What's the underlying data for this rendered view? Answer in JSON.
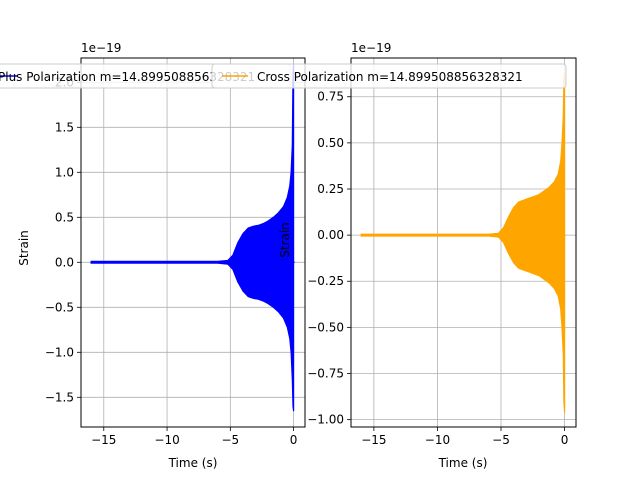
{
  "chart_data": [
    {
      "type": "line",
      "title": "",
      "xlabel": "Time (s)",
      "ylabel": "Strain",
      "offset_text": "1e−19",
      "xlim": [
        -16.8,
        0.9
      ],
      "ylim": [
        -1.83,
        2.27
      ],
      "xticks": [
        -15,
        -10,
        -5,
        0
      ],
      "xtick_labels": [
        "−15",
        "−10",
        "−5",
        "0"
      ],
      "yticks": [
        -1.5,
        -1.0,
        -0.5,
        0.0,
        0.5,
        1.0,
        1.5,
        2.0
      ],
      "ytick_labels": [
        "−1.5",
        "−1.0",
        "−0.5",
        "0.0",
        "0.5",
        "1.0",
        "1.5",
        "2.0"
      ],
      "grid": true,
      "legend_position": "top",
      "series": [
        {
          "name": "Plus Polarization m=14.899508856328321",
          "color": "#0000ff",
          "envelope": {
            "t": [
              -16,
              -12,
              -8,
              -6,
              -5.2,
              -4.8,
              -4.4,
              -4,
              -3.6,
              -3.2,
              -2.8,
              -2.4,
              -2,
              -1.6,
              -1.2,
              -0.8,
              -0.5,
              -0.3,
              -0.2,
              -0.1,
              -0.05,
              0
            ],
            "upper": [
              0.01,
              0.01,
              0.01,
              0.01,
              0.02,
              0.08,
              0.22,
              0.32,
              0.38,
              0.4,
              0.41,
              0.43,
              0.46,
              0.5,
              0.55,
              0.62,
              0.72,
              0.85,
              1.0,
              1.3,
              2.1,
              2.2
            ],
            "lower": [
              -0.01,
              -0.01,
              -0.01,
              -0.01,
              -0.02,
              -0.08,
              -0.22,
              -0.32,
              -0.38,
              -0.4,
              -0.41,
              -0.43,
              -0.46,
              -0.5,
              -0.55,
              -0.62,
              -0.72,
              -0.85,
              -1.0,
              -1.3,
              -1.6,
              -1.65
            ]
          }
        }
      ]
    },
    {
      "type": "line",
      "title": "",
      "xlabel": "Time (s)",
      "ylabel": "Strain",
      "offset_text": "1e−19",
      "xlim": [
        -16.8,
        0.9
      ],
      "ylim": [
        -1.04,
        0.96
      ],
      "xticks": [
        -15,
        -10,
        -5,
        0
      ],
      "xtick_labels": [
        "−15",
        "−10",
        "−5",
        "0"
      ],
      "yticks": [
        -1.0,
        -0.75,
        -0.5,
        -0.25,
        0.0,
        0.25,
        0.5,
        0.75
      ],
      "ytick_labels": [
        "−1.00",
        "−0.75",
        "−0.50",
        "−0.25",
        "0.00",
        "0.25",
        "0.50",
        "0.75"
      ],
      "grid": true,
      "legend_position": "top",
      "series": [
        {
          "name": "Cross Polarization m=14.899508856328321",
          "color": "#ffa500",
          "envelope": {
            "t": [
              -16,
              -12,
              -8,
              -6,
              -5.2,
              -4.8,
              -4.4,
              -4,
              -3.6,
              -3.2,
              -2.8,
              -2.4,
              -2,
              -1.6,
              -1.2,
              -0.8,
              -0.5,
              -0.3,
              -0.2,
              -0.1,
              -0.05,
              0
            ],
            "upper": [
              0.005,
              0.005,
              0.005,
              0.005,
              0.01,
              0.04,
              0.1,
              0.15,
              0.18,
              0.19,
              0.2,
              0.21,
              0.22,
              0.24,
              0.26,
              0.29,
              0.33,
              0.4,
              0.5,
              0.65,
              0.85,
              0.88
            ],
            "lower": [
              -0.005,
              -0.005,
              -0.005,
              -0.005,
              -0.01,
              -0.04,
              -0.1,
              -0.15,
              -0.18,
              -0.19,
              -0.2,
              -0.21,
              -0.22,
              -0.24,
              -0.26,
              -0.29,
              -0.33,
              -0.4,
              -0.5,
              -0.65,
              -0.9,
              -0.96
            ]
          }
        }
      ]
    }
  ]
}
